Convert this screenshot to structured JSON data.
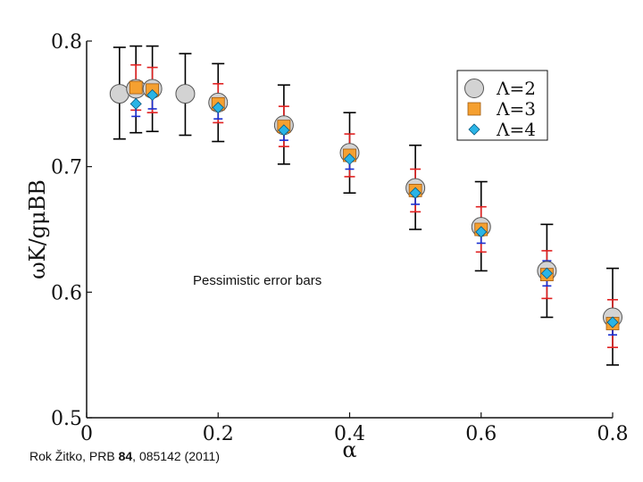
{
  "chart_data": {
    "type": "scatter",
    "title": "",
    "xlabel": "α",
    "ylabel": "ωK/gμBB",
    "xlim": [
      0,
      0.8
    ],
    "ylim": [
      0.5,
      0.8
    ],
    "xticks": [
      0,
      0.2,
      0.4,
      0.6,
      0.8
    ],
    "xtick_labels": [
      "0",
      "0.2",
      "0.4",
      "0.6",
      "0.8"
    ],
    "yticks": [
      0.5,
      0.6,
      0.7,
      0.8
    ],
    "ytick_labels": [
      "0.5",
      "0.6",
      "0.7",
      "0.8"
    ],
    "legend_position": "top-right",
    "series": [
      {
        "name": "Λ=2",
        "marker": "circle",
        "color": "#d3d3d3",
        "error_color": "#000000",
        "points": [
          {
            "x": 0.05,
            "y": 0.758,
            "lo": 0.722,
            "hi": 0.795
          },
          {
            "x": 0.075,
            "y": 0.762,
            "lo": 0.727,
            "hi": 0.796
          },
          {
            "x": 0.1,
            "y": 0.762,
            "lo": 0.728,
            "hi": 0.796
          },
          {
            "x": 0.15,
            "y": 0.758,
            "lo": 0.725,
            "hi": 0.79
          },
          {
            "x": 0.2,
            "y": 0.751,
            "lo": 0.72,
            "hi": 0.782
          },
          {
            "x": 0.3,
            "y": 0.733,
            "lo": 0.702,
            "hi": 0.765
          },
          {
            "x": 0.4,
            "y": 0.711,
            "lo": 0.679,
            "hi": 0.743
          },
          {
            "x": 0.5,
            "y": 0.683,
            "lo": 0.65,
            "hi": 0.717
          },
          {
            "x": 0.6,
            "y": 0.652,
            "lo": 0.617,
            "hi": 0.688
          },
          {
            "x": 0.7,
            "y": 0.617,
            "lo": 0.58,
            "hi": 0.654
          },
          {
            "x": 0.8,
            "y": 0.58,
            "lo": 0.542,
            "hi": 0.619
          }
        ]
      },
      {
        "name": "Λ=3",
        "marker": "square",
        "color": "#f5a030",
        "error_color": "#e02020",
        "points": [
          {
            "x": 0.075,
            "y": 0.763,
            "lo": 0.745,
            "hi": 0.781
          },
          {
            "x": 0.1,
            "y": 0.761,
            "lo": 0.743,
            "hi": 0.779
          },
          {
            "x": 0.2,
            "y": 0.75,
            "lo": 0.735,
            "hi": 0.766
          },
          {
            "x": 0.3,
            "y": 0.732,
            "lo": 0.716,
            "hi": 0.748
          },
          {
            "x": 0.4,
            "y": 0.709,
            "lo": 0.692,
            "hi": 0.726
          },
          {
            "x": 0.5,
            "y": 0.681,
            "lo": 0.664,
            "hi": 0.698
          },
          {
            "x": 0.6,
            "y": 0.65,
            "lo": 0.632,
            "hi": 0.668
          },
          {
            "x": 0.7,
            "y": 0.614,
            "lo": 0.595,
            "hi": 0.633
          },
          {
            "x": 0.8,
            "y": 0.575,
            "lo": 0.556,
            "hi": 0.594
          }
        ]
      },
      {
        "name": "Λ=4",
        "marker": "diamond",
        "color": "#2ab4e6",
        "error_color": "#1a2fd0",
        "points": [
          {
            "x": 0.075,
            "y": 0.75,
            "lo": 0.74,
            "hi": 0.76
          },
          {
            "x": 0.1,
            "y": 0.757,
            "lo": 0.746,
            "hi": 0.768
          },
          {
            "x": 0.2,
            "y": 0.747,
            "lo": 0.738,
            "hi": 0.756
          },
          {
            "x": 0.3,
            "y": 0.729,
            "lo": 0.721,
            "hi": 0.737
          },
          {
            "x": 0.4,
            "y": 0.706,
            "lo": 0.698,
            "hi": 0.714
          },
          {
            "x": 0.5,
            "y": 0.679,
            "lo": 0.67,
            "hi": 0.688
          },
          {
            "x": 0.6,
            "y": 0.648,
            "lo": 0.639,
            "hi": 0.658
          },
          {
            "x": 0.7,
            "y": 0.615,
            "lo": 0.605,
            "hi": 0.625
          },
          {
            "x": 0.8,
            "y": 0.576,
            "lo": 0.566,
            "hi": 0.586
          }
        ]
      }
    ],
    "annotation": "Pessimistic error bars"
  },
  "citation": {
    "before": "Rok Žitko, PRB ",
    "volume": "84",
    "after": ", 085142 (2011)"
  }
}
